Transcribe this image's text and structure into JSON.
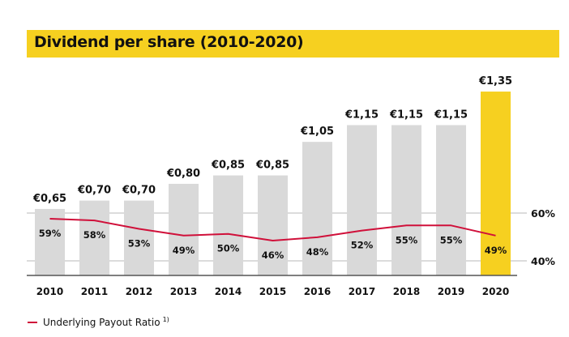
{
  "title": "Dividend per share (2010-2020)",
  "colors": {
    "bar_default": "#d9d9d9",
    "bar_highlight": "#f6d020",
    "line": "#d0103a",
    "gridline": "#c8c8c8",
    "axis": "#555555",
    "title_bg": "#f6d020"
  },
  "legend": {
    "label": "Underlying Payout Ratio",
    "footnote": "1)"
  },
  "chart_data": {
    "type": "bar",
    "title": "Dividend per share (2010-2020)",
    "categories": [
      "2010",
      "2011",
      "2012",
      "2013",
      "2014",
      "2015",
      "2016",
      "2017",
      "2018",
      "2019",
      "2020"
    ],
    "series": [
      {
        "name": "Dividend per share",
        "type": "bar",
        "unit": "EUR",
        "values": [
          0.65,
          0.7,
          0.7,
          0.8,
          0.85,
          0.85,
          1.05,
          1.15,
          1.15,
          1.15,
          1.35
        ],
        "labels": [
          "€0,65",
          "€0,70",
          "€0,70",
          "€0,80",
          "€0,85",
          "€0,85",
          "€1,05",
          "€1,15",
          "€1,15",
          "€1,15",
          "€1,35"
        ],
        "highlight_index": 10
      },
      {
        "name": "Underlying Payout Ratio",
        "type": "line",
        "unit": "%",
        "values": [
          59,
          58,
          53,
          49,
          50,
          46,
          48,
          52,
          55,
          55,
          49
        ],
        "labels": [
          "59%",
          "58%",
          "53%",
          "49%",
          "50%",
          "46%",
          "48%",
          "52%",
          "55%",
          "55%",
          "49%"
        ]
      }
    ],
    "secondary_axis": {
      "ticks": [
        60,
        40
      ],
      "tick_labels": [
        "60%",
        "40%"
      ],
      "gridlines": true
    },
    "xlabel": "",
    "ylabel": "",
    "legend_position": "bottom-left"
  }
}
